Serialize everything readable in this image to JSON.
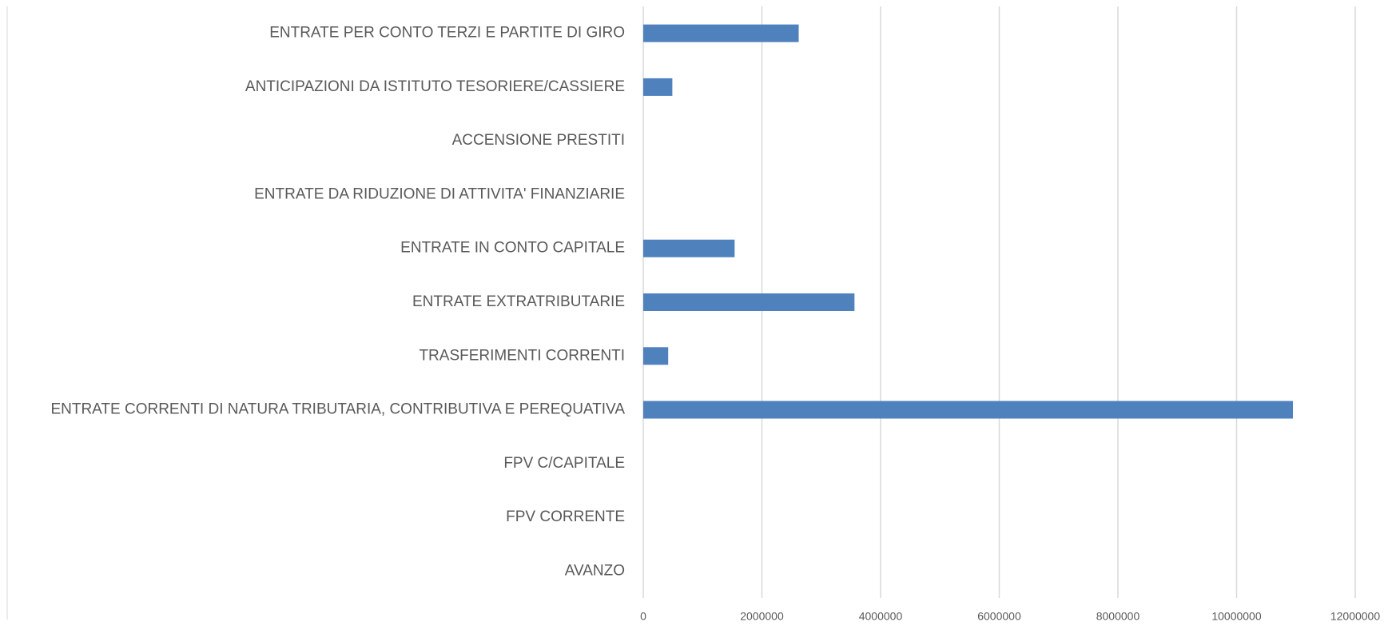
{
  "chart_data": {
    "type": "bar",
    "orientation": "horizontal",
    "categories": [
      "AVANZO",
      "FPV CORRENTE",
      "FPV C/CAPITALE",
      "ENTRATE CORRENTI DI NATURA TRIBUTARIA, CONTRIBUTIVA E PEREQUATIVA",
      "TRASFERIMENTI CORRENTI",
      "ENTRATE EXTRATRIBUTARIE",
      "ENTRATE IN CONTO CAPITALE",
      "ENTRATE DA RIDUZIONE DI ATTIVITA' FINANZIARIE",
      "ACCENSIONE PRESTITI",
      "ANTICIPAZIONI DA ISTITUTO TESORIERE/CASSIERE",
      "ENTRATE PER CONTO TERZI E PARTITE DI GIRO"
    ],
    "values": [
      0,
      0,
      0,
      10950000,
      420000,
      3560000,
      1540000,
      0,
      0,
      490000,
      2620000
    ],
    "color": "#4f81bd",
    "xlim": [
      0,
      12000000
    ],
    "xticks": [
      0,
      2000000,
      4000000,
      6000000,
      8000000,
      10000000,
      12000000
    ],
    "grid": true
  }
}
